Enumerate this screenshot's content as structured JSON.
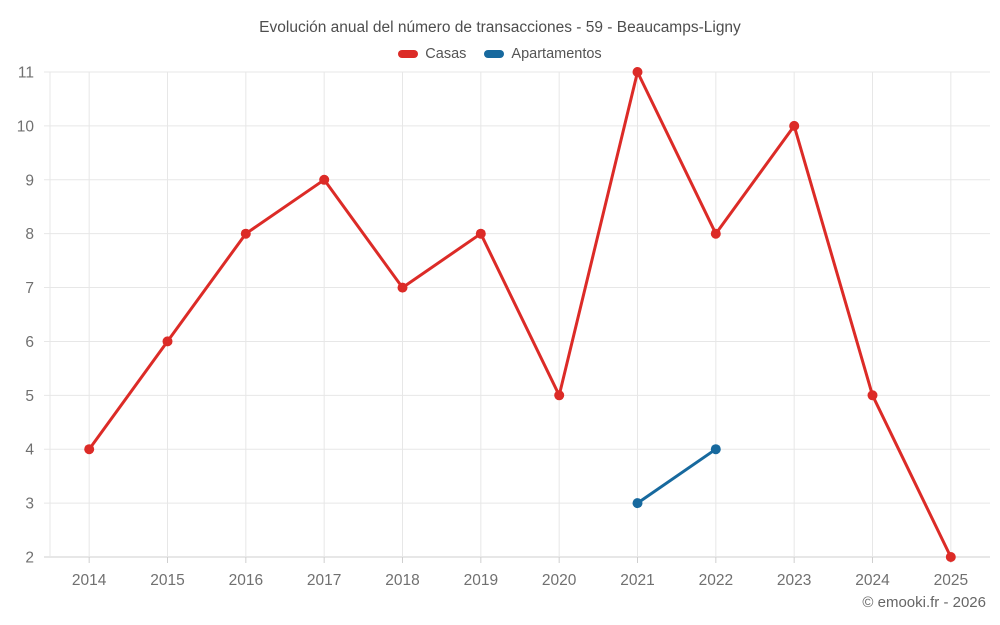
{
  "chart_data": {
    "type": "line",
    "title": "Evolución anual del número de transacciones - 59 - Beaucamps-Ligny",
    "categories": [
      "2014",
      "2015",
      "2016",
      "2017",
      "2018",
      "2019",
      "2020",
      "2021",
      "2022",
      "2023",
      "2024",
      "2025"
    ],
    "series": [
      {
        "name": "Casas",
        "color": "#dc2b27",
        "values": [
          4,
          6,
          8,
          9,
          7,
          8,
          5,
          11,
          8,
          10,
          5,
          2
        ]
      },
      {
        "name": "Apartamentos",
        "color": "#17699e",
        "values": [
          null,
          null,
          null,
          null,
          null,
          null,
          null,
          3,
          4,
          null,
          null,
          null
        ]
      }
    ],
    "ylim": [
      2,
      11
    ],
    "yticks": [
      2,
      3,
      4,
      5,
      6,
      7,
      8,
      9,
      10,
      11
    ],
    "xlabel": "",
    "ylabel": "",
    "grid": true,
    "legend_position": "top",
    "axis_label_color": "#707070"
  },
  "footer": {
    "text": "© emooki.fr - 2026"
  }
}
